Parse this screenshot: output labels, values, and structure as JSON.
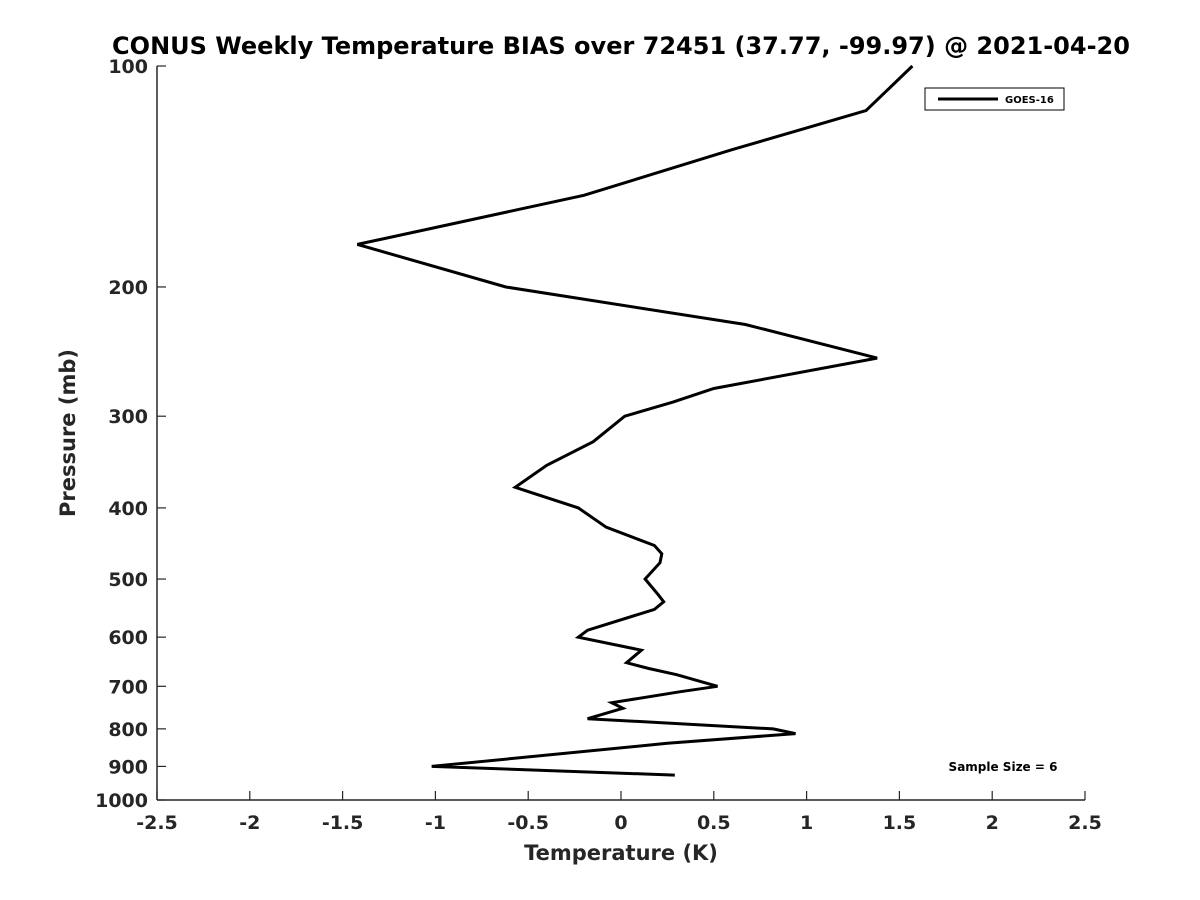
{
  "chart_data": {
    "type": "line",
    "title": "CONUS Weekly Temperature BIAS over 72451 (37.77, -99.97) @ 2021-04-20",
    "xlabel": "Temperature (K)",
    "ylabel": "Pressure (mb)",
    "xlim": [
      -2.5,
      2.5
    ],
    "ylim": [
      1000,
      100
    ],
    "y_scale": "log",
    "y_reversed": true,
    "x_ticks": [
      "-2.5",
      "-2",
      "-1.5",
      "-1",
      "-0.5",
      "0",
      "0.5",
      "1",
      "1.5",
      "2",
      "2.5"
    ],
    "y_ticks": [
      "100",
      "200",
      "300",
      "400",
      "500",
      "600",
      "700",
      "800",
      "900",
      "1000"
    ],
    "grid": false,
    "legend_position": "top-right",
    "annotation": "Sample Size = 6",
    "series": [
      {
        "name": "GOES-16",
        "color": "#000000",
        "points": [
          {
            "t": 1.57,
            "p": 100
          },
          {
            "t": 1.32,
            "p": 115
          },
          {
            "t": 0.6,
            "p": 130
          },
          {
            "t": -0.2,
            "p": 150
          },
          {
            "t": -1.42,
            "p": 175
          },
          {
            "t": -0.62,
            "p": 200
          },
          {
            "t": 0.67,
            "p": 225
          },
          {
            "t": 1.38,
            "p": 250
          },
          {
            "t": 0.5,
            "p": 275
          },
          {
            "t": 0.28,
            "p": 287
          },
          {
            "t": 0.02,
            "p": 300
          },
          {
            "t": -0.15,
            "p": 325
          },
          {
            "t": -0.4,
            "p": 350
          },
          {
            "t": -0.57,
            "p": 375
          },
          {
            "t": -0.5,
            "p": 380
          },
          {
            "t": -0.23,
            "p": 400
          },
          {
            "t": -0.08,
            "p": 425
          },
          {
            "t": 0.18,
            "p": 450
          },
          {
            "t": 0.22,
            "p": 462
          },
          {
            "t": 0.21,
            "p": 475
          },
          {
            "t": 0.13,
            "p": 500
          },
          {
            "t": 0.2,
            "p": 525
          },
          {
            "t": 0.23,
            "p": 537
          },
          {
            "t": 0.18,
            "p": 550
          },
          {
            "t": -0.18,
            "p": 587
          },
          {
            "t": -0.23,
            "p": 600
          },
          {
            "t": 0.11,
            "p": 625
          },
          {
            "t": 0.03,
            "p": 650
          },
          {
            "t": 0.15,
            "p": 662
          },
          {
            "t": 0.3,
            "p": 675
          },
          {
            "t": 0.52,
            "p": 700
          },
          {
            "t": 0.32,
            "p": 712
          },
          {
            "t": -0.05,
            "p": 737
          },
          {
            "t": 0.01,
            "p": 750
          },
          {
            "t": -0.18,
            "p": 775
          },
          {
            "t": 0.82,
            "p": 800
          },
          {
            "t": 0.94,
            "p": 812
          },
          {
            "t": 0.25,
            "p": 837
          },
          {
            "t": -1.02,
            "p": 900
          },
          {
            "t": 0.29,
            "p": 925
          }
        ]
      }
    ]
  }
}
